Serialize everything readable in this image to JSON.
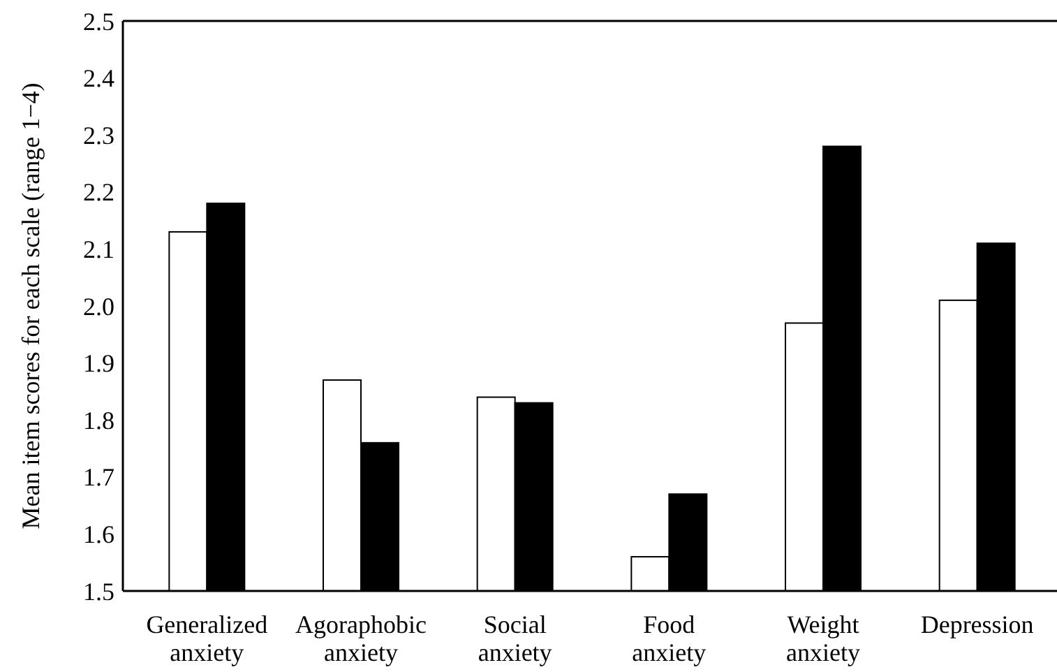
{
  "chart_data": {
    "type": "bar",
    "ylabel": "Mean item scores  for each scale (range 1−4)",
    "categories": [
      "Generalized anxiety",
      "Agoraphobic anxiety",
      "Social anxiety",
      "Food anxiety",
      "Weight anxiety",
      "Depression"
    ],
    "series": [
      {
        "color": "#ffffff",
        "values": [
          2.13,
          1.87,
          1.84,
          1.56,
          1.97,
          2.01
        ]
      },
      {
        "color": "#000000",
        "values": [
          2.18,
          1.76,
          1.83,
          1.67,
          2.28,
          2.11
        ]
      }
    ],
    "ylim": [
      1.5,
      2.5
    ],
    "yticks": [
      1.5,
      1.6,
      1.7,
      1.8,
      1.9,
      {
        "value": 2,
        "label": "2.0"
      },
      2.1,
      2.2,
      2.3,
      2.4,
      2.5
    ]
  }
}
